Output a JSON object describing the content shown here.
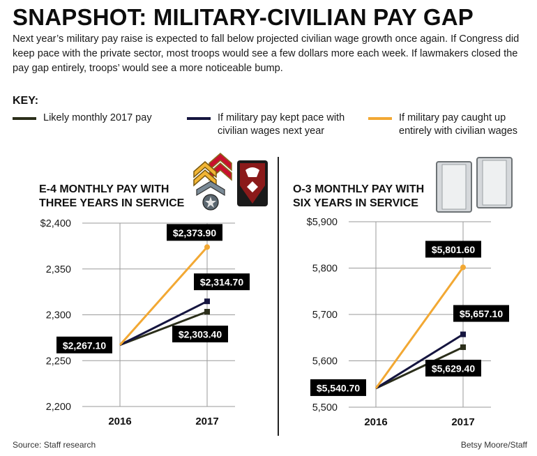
{
  "title": "SNAPSHOT: MILITARY-CIVILIAN PAY GAP",
  "subtitle": "Next year’s military pay raise is expected to fall below projected civilian wage growth once again. If Congress did keep pace with the private sector, most troops would see a few dollars more each week. If lawmakers closed the pay gap entirely, troops’ would see a more noticeable bump.",
  "key_label": "KEY:",
  "legend": [
    {
      "label": "Likely monthly 2017 pay",
      "color": "#2b2e1a"
    },
    {
      "label": "If military pay kept pace with\ncivilian wages next year",
      "color": "#15153f"
    },
    {
      "label": "If military pay caught up\nentirely with civilian wages",
      "color": "#f2a833"
    }
  ],
  "chart_data": [
    {
      "type": "line",
      "title": "E-4 MONTHLY PAY WITH\nTHREE YEARS IN SERVICE",
      "x": [
        "2016",
        "2017"
      ],
      "ylim": [
        2200,
        2400
      ],
      "y_ticks": [
        "$2,400",
        "2,350",
        "2,300",
        "2,250",
        "2,200"
      ],
      "y_tick_values": [
        2400,
        2350,
        2300,
        2250,
        2200
      ],
      "start": {
        "value": 2267.1,
        "label": "$2,267.10"
      },
      "series": [
        {
          "key": "likely",
          "values": [
            2267.1,
            2303.4
          ],
          "end_label": "$2,303.40"
        },
        {
          "key": "pace",
          "values": [
            2267.1,
            2314.7
          ],
          "end_label": "$2,314.70"
        },
        {
          "key": "caught_up",
          "values": [
            2267.1,
            2373.9
          ],
          "end_label": "$2,373.90"
        }
      ]
    },
    {
      "type": "line",
      "title": "O-3 MONTHLY PAY WITH\nSIX YEARS IN SERVICE",
      "x": [
        "2016",
        "2017"
      ],
      "ylim": [
        5500,
        5900
      ],
      "y_ticks": [
        "$5,900",
        "5,800",
        "5,700",
        "5,600",
        "5,500"
      ],
      "y_tick_values": [
        5900,
        5800,
        5700,
        5600,
        5500
      ],
      "start": {
        "value": 5540.7,
        "label": "$5,540.70"
      },
      "series": [
        {
          "key": "likely",
          "values": [
            5540.7,
            5629.4
          ],
          "end_label": "$5,629.40"
        },
        {
          "key": "pace",
          "values": [
            5540.7,
            5657.1
          ],
          "end_label": "$5,657.10"
        },
        {
          "key": "caught_up",
          "values": [
            5540.7,
            5801.6
          ],
          "end_label": "$5,801.60"
        }
      ]
    }
  ],
  "colors": {
    "likely": "#2b2e1a",
    "pace": "#15153f",
    "caught_up": "#f2a833",
    "grid": "#9a9a9a",
    "label_bg": "#000000"
  },
  "footer": {
    "source": "Source: Staff research",
    "credit": "Betsy Moore/Staff"
  }
}
